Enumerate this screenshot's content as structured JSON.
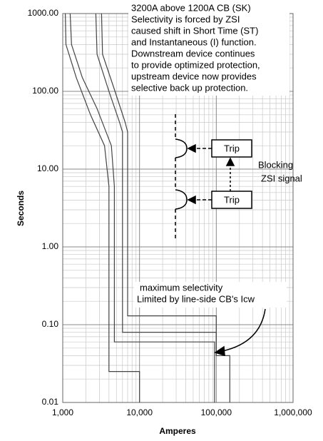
{
  "chart_data": {
    "type": "line",
    "xlabel": "Amperes",
    "ylabel": "Seconds",
    "xlog": true,
    "ylog": true,
    "grid": true,
    "minor_grid": true,
    "xlim": [
      1000,
      1000000
    ],
    "ylim": [
      0.01,
      1000
    ],
    "xticks": [
      {
        "value": 1000,
        "label": "1,000"
      },
      {
        "value": 10000,
        "label": "10,000"
      },
      {
        "value": 100000,
        "label": "100,000"
      },
      {
        "value": 1000000,
        "label": "1,000,000"
      }
    ],
    "yticks": [
      {
        "value": 0.01,
        "label": "0.01"
      },
      {
        "value": 0.1,
        "label": "0.10"
      },
      {
        "value": 1,
        "label": "1.00"
      },
      {
        "value": 10,
        "label": "10.00"
      },
      {
        "value": 100,
        "label": "100.00"
      },
      {
        "value": 1000,
        "label": "1000.00"
      }
    ],
    "series": [
      {
        "color": "#444444",
        "x": [
          1080,
          1100,
          1500,
          2300,
          3500,
          4000,
          4000,
          10000,
          10000
        ],
        "values": [
          1000,
          400,
          150,
          50,
          20,
          6,
          0.025,
          0.025,
          0.01
        ]
      },
      {
        "color": "#444444",
        "x": [
          1250,
          1300,
          1800,
          2800,
          4300,
          4700,
          4700,
          95000,
          95000
        ],
        "values": [
          1000,
          400,
          150,
          60,
          20,
          6,
          0.06,
          0.06,
          0.01
        ]
      },
      {
        "color": "#444444",
        "x": [
          2700,
          2800,
          4000,
          5500,
          6000,
          6000,
          100000,
          100000,
          150000,
          150000
        ],
        "values": [
          1000,
          300,
          100,
          40,
          30,
          0.08,
          0.08,
          0.04,
          0.04,
          0.01
        ]
      },
      {
        "color": "#444444",
        "x": [
          3200,
          3300,
          4800,
          6500,
          7000,
          7000,
          100000,
          100000
        ],
        "values": [
          1000,
          300,
          100,
          40,
          30,
          0.13,
          0.13,
          0.04
        ]
      }
    ],
    "annotations": {
      "note": [
        "3200A above 1200A CB (SK)",
        "Selectivity is forced by ZSI",
        "caused shift in Short Time (ST)",
        "and Instantaneous (I) function.",
        "Downstream device continues",
        "to provide optimized protection,",
        "upstream device now provides",
        "selective back up protection."
      ],
      "trip_upper": "Trip",
      "trip_lower": "Trip",
      "blocking": [
        "Blocking",
        "ZSI signal"
      ],
      "selectivity": [
        "maximum selectivity",
        "Limited by line-side CB's Icw"
      ]
    }
  }
}
